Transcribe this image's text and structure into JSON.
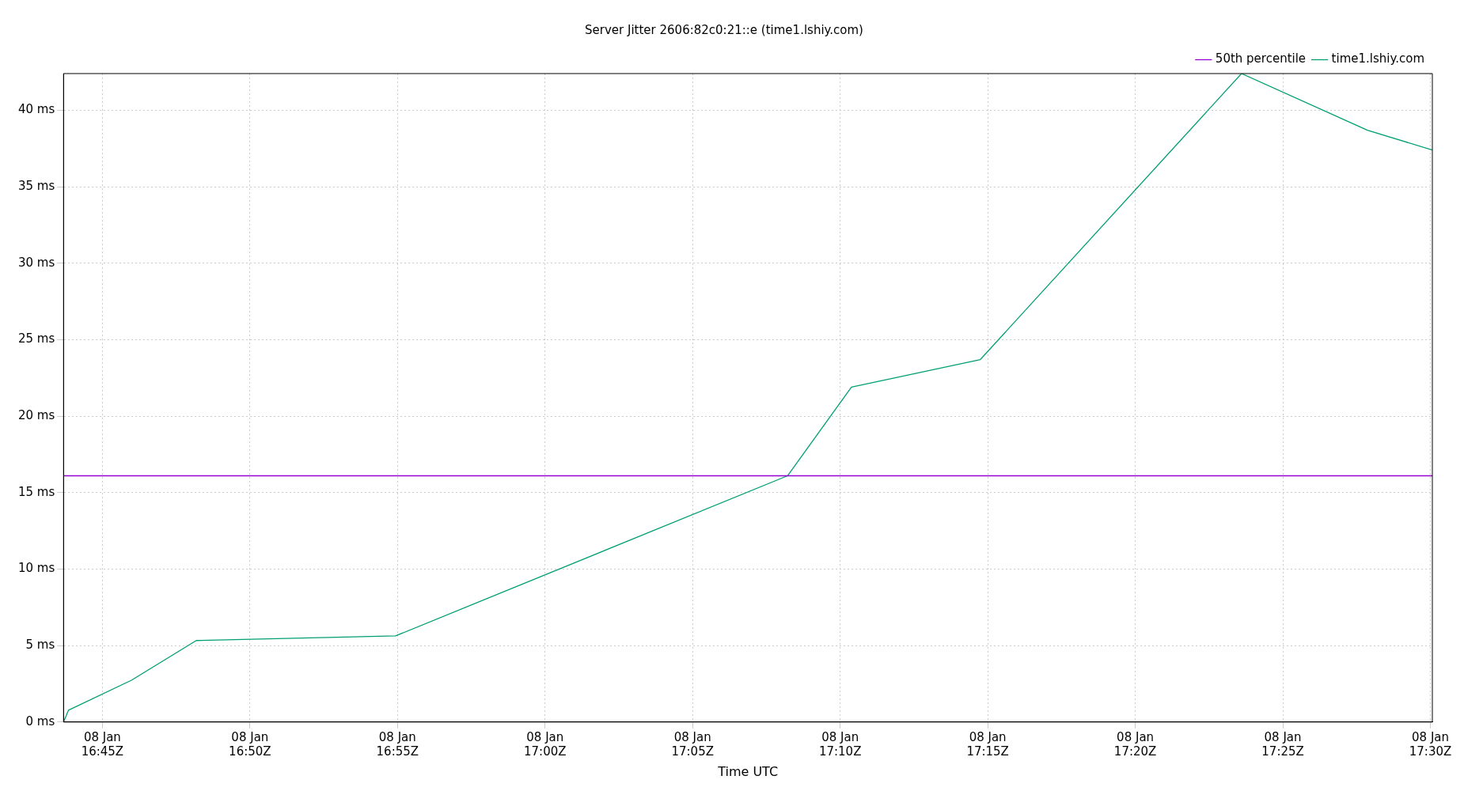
{
  "chart_data": {
    "type": "line",
    "title": "Server Jitter 2606:82c0:21::e (time1.lshiy.com)",
    "xlabel": "Time UTC",
    "xlim": [
      "--01-08T16:43:41",
      "--01-08T17:30:04"
    ],
    "ylim": [
      0,
      42.4
    ],
    "xticks": [
      {
        "value": "--01-08T16:45",
        "label": "08 Jan\n16:45Z"
      },
      {
        "value": "--01-08T16:50",
        "label": "08 Jan\n16:50Z"
      },
      {
        "value": "--01-08T16:55",
        "label": "08 Jan\n16:55Z"
      },
      {
        "value": "--01-08T17:00",
        "label": "08 Jan\n17:00Z"
      },
      {
        "value": "--01-08T17:05",
        "label": "08 Jan\n17:05Z"
      },
      {
        "value": "--01-08T17:10",
        "label": "08 Jan\n17:10Z"
      },
      {
        "value": "--01-08T17:15",
        "label": "08 Jan\n17:15Z"
      },
      {
        "value": "--01-08T17:20",
        "label": "08 Jan\n17:20Z"
      },
      {
        "value": "--01-08T17:25",
        "label": "08 Jan\n17:25Z"
      },
      {
        "value": "--01-08T17:30",
        "label": "08 Jan\n17:30Z"
      }
    ],
    "yticks": [
      {
        "value": 0,
        "label": "0 ms"
      },
      {
        "value": 5,
        "label": "5 ms"
      },
      {
        "value": 10,
        "label": "10 ms"
      },
      {
        "value": 15,
        "label": "15 ms"
      },
      {
        "value": 20,
        "label": "20 ms"
      },
      {
        "value": 25,
        "label": "25 ms"
      },
      {
        "value": 30,
        "label": "30 ms"
      },
      {
        "value": 35,
        "label": "35 ms"
      },
      {
        "value": 40,
        "label": "40 ms"
      }
    ],
    "series": [
      {
        "name": "50th percentile",
        "color": "#9400d3",
        "x": [
          "--01-08T16:43:41",
          "--01-08T17:30:04"
        ],
        "values": [
          16.1,
          16.1
        ]
      },
      {
        "name": "time1.lshiy.com",
        "color": "#009e73",
        "x": [
          "--01-08T16:43:41",
          "--01-08T16:43:51",
          "--01-08T16:45:59",
          "--01-08T16:48:11",
          "--01-08T16:54:56",
          "--01-08T17:08:13",
          "--01-08T17:10:23",
          "--01-08T17:14:45",
          "--01-08T17:23:36",
          "--01-08T17:27:52",
          "--01-08T17:30:04"
        ],
        "values": [
          0,
          0.77,
          2.73,
          5.33,
          5.63,
          16.1,
          21.9,
          23.7,
          42.4,
          38.7,
          37.4
        ]
      }
    ],
    "grid": true,
    "legend": "top right",
    "marker": "none",
    "line_style": "solid"
  }
}
